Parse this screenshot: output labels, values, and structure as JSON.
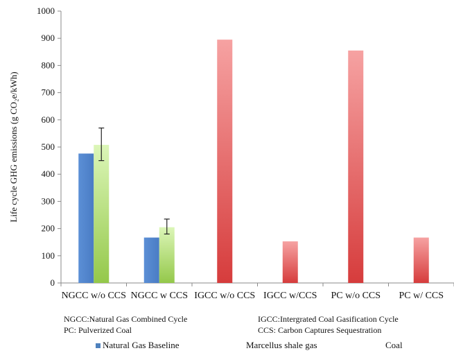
{
  "chart_data": {
    "type": "bar",
    "ylabel": "Life cycle GHG emissions (g CO₂e/kWh)",
    "ylim": [
      0,
      1000
    ],
    "yticks": [
      0,
      100,
      200,
      300,
      400,
      500,
      600,
      700,
      800,
      900,
      1000
    ],
    "categories": [
      "NGCC w/o CCS",
      "NGCC w CCS",
      "IGCC w/o CCS",
      "IGCC w/CCS",
      "PC w/o CCS",
      "PC w/ CCS"
    ],
    "series": [
      {
        "name": "Natural Gas Baseline",
        "color": "#4f81bd",
        "values": [
          476,
          167,
          null,
          null,
          null,
          null
        ]
      },
      {
        "name": "Marcellus shale gas",
        "color": "#9bc84a",
        "values": [
          508,
          205,
          null,
          null,
          null,
          null
        ],
        "error_low": [
          450,
          180,
          null,
          null,
          null,
          null
        ],
        "error_high": [
          570,
          235,
          null,
          null,
          null,
          null
        ]
      },
      {
        "name": "Coal",
        "color": "#e05a5a",
        "values": [
          null,
          null,
          895,
          153,
          855,
          167
        ]
      }
    ],
    "grid": false,
    "legend_position": "bottom"
  },
  "notes": {
    "left_line1": "NGCC:Natural Gas Combined Cycle",
    "left_line2": "PC: Pulverized Coal",
    "right_line1": "IGCC:Intergrated Coal Gasification Cycle",
    "right_line2": "CCS: Carbon Captures Sequestration"
  }
}
